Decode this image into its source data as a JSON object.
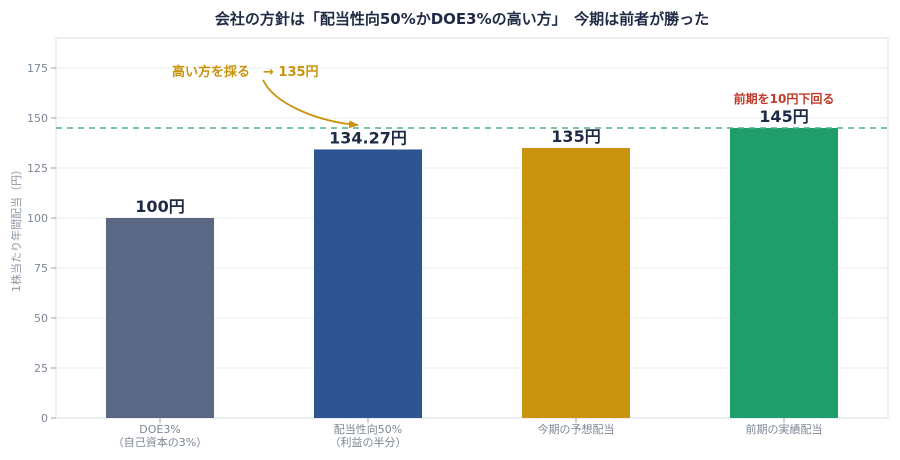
{
  "chart_data": {
    "type": "bar",
    "title": "会社の方針は「配当性向50%かDOE3%の高い方」　今期は前者が勝った",
    "ylabel": "1株当たり年間配当（円）",
    "xlabel": "",
    "ylim": [
      0,
      190
    ],
    "yticks": [
      0,
      25,
      50,
      75,
      100,
      125,
      150,
      175
    ],
    "grid": true,
    "categories": [
      [
        "DOE3%",
        "（自己資本の3%）"
      ],
      [
        "配当性向50%",
        "（利益の半分）"
      ],
      [
        "今期の予想配当"
      ],
      [
        "前期の実績配当"
      ]
    ],
    "values": [
      100,
      134.27,
      135,
      145
    ],
    "value_labels": [
      "100円",
      "134.27円",
      "135円",
      "145円"
    ],
    "colors": [
      "#5a6886",
      "#2e5494",
      "#c9930d",
      "#1f9e6b"
    ],
    "reference_line": {
      "value": 145,
      "color": "#4cb38a",
      "style": "dashed"
    },
    "annotations": {
      "higher": "高い方を採る　→ 135円",
      "below_prior": "前期を10円下回る"
    }
  }
}
